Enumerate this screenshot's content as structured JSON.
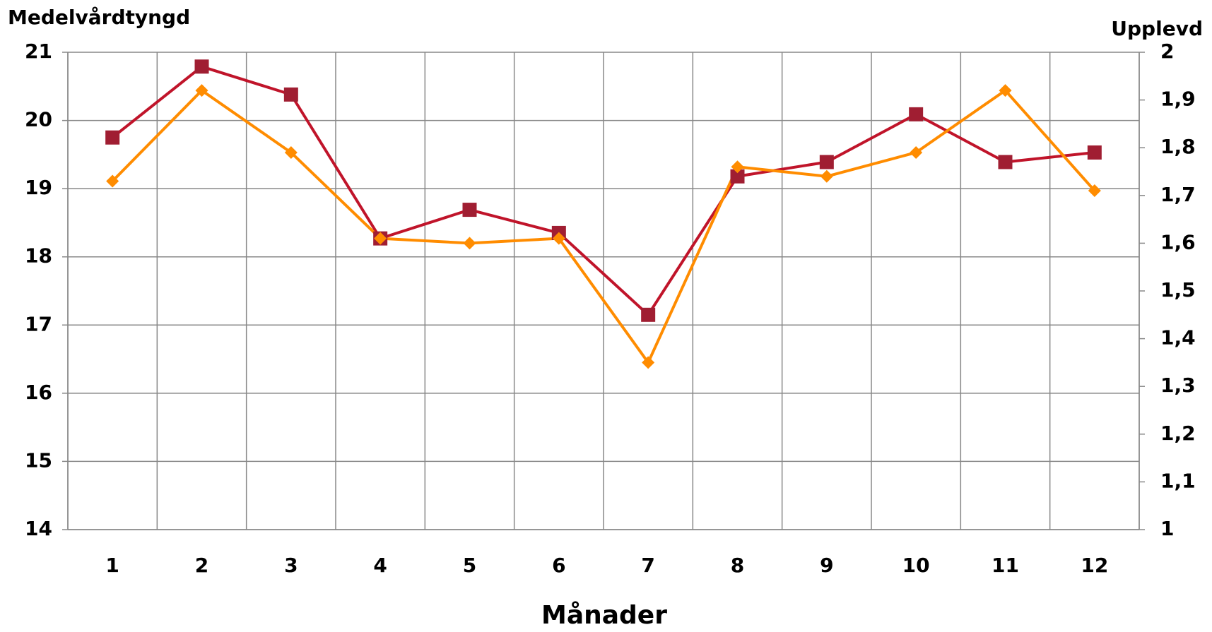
{
  "chart_data": {
    "type": "line",
    "y_label": "Medelvårdtyngd",
    "y2_label": "Upplevd",
    "x_label": "Månader",
    "categories": [
      "1",
      "2",
      "3",
      "4",
      "5",
      "6",
      "7",
      "8",
      "9",
      "10",
      "11",
      "12"
    ],
    "series": [
      {
        "name": "Medelvårdtyngd",
        "color": "#c0142a",
        "marker_color": "#a01e32",
        "marker": "square",
        "values": [
          19.75,
          20.79,
          20.38,
          18.27,
          18.69,
          18.35,
          17.15,
          19.18,
          19.39,
          20.09,
          19.39,
          19.53
        ]
      },
      {
        "name": "Upplevd",
        "color": "#ff8c00",
        "marker_color": "#ff8c00",
        "marker": "diamond",
        "axis": "y2",
        "values": [
          1.73,
          1.92,
          1.79,
          1.61,
          1.6,
          1.61,
          1.35,
          1.76,
          1.74,
          1.79,
          1.92,
          1.71
        ]
      }
    ],
    "ylim": [
      14,
      21
    ],
    "yticks": [
      14,
      15,
      16,
      17,
      18,
      19,
      20,
      21
    ],
    "y2lim": [
      1,
      2
    ],
    "y2ticks": [
      1,
      {
        "value": 1.1,
        "label": "1,1"
      },
      {
        "value": 1.2,
        "label": "1,2"
      },
      {
        "value": 1.3,
        "label": "1,3"
      },
      {
        "value": 1.4,
        "label": "1,4"
      },
      {
        "value": 1.5,
        "label": "1,5"
      },
      {
        "value": 1.6,
        "label": "1,6"
      },
      {
        "value": 1.7,
        "label": "1,7"
      },
      {
        "value": 1.8,
        "label": "1,8"
      },
      {
        "value": 1.9,
        "label": "1,9"
      },
      2
    ],
    "grid": true
  }
}
